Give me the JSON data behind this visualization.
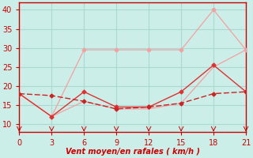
{
  "xlabel": "Vent moyen/en rafales ( km/h )",
  "xlim": [
    0,
    21
  ],
  "ylim": [
    8,
    42
  ],
  "yticks": [
    10,
    15,
    20,
    25,
    30,
    35,
    40
  ],
  "xticks": [
    0,
    3,
    6,
    9,
    12,
    15,
    18,
    21
  ],
  "bg_color": "#cceee8",
  "grid_color": "#aad8d2",
  "line_light1_x": [
    0,
    3,
    6,
    9,
    12,
    15,
    18,
    21
  ],
  "line_light1_y": [
    18,
    12,
    29.5,
    29.5,
    29.5,
    29.5,
    40,
    29.5
  ],
  "line_light2_x": [
    0,
    3,
    6,
    9,
    12,
    15,
    18,
    21
  ],
  "line_light2_y": [
    18,
    12,
    16,
    14,
    14,
    15.5,
    25,
    29.5
  ],
  "line_dark1_x": [
    0,
    3,
    6,
    9,
    12,
    15,
    18,
    21
  ],
  "line_dark1_y": [
    18,
    12,
    18.5,
    14.5,
    14.5,
    18.5,
    25.5,
    18.5
  ],
  "line_dark2_x": [
    0,
    3,
    6,
    9,
    12,
    15,
    18,
    21
  ],
  "line_dark2_y": [
    18,
    17.5,
    16,
    14,
    14.5,
    15.5,
    18,
    18.5
  ],
  "color_light": "#f4a0a0",
  "color_dark": "#cc2222",
  "color_mid": "#e03030",
  "marker": "D",
  "markersize": 2.5,
  "xlabel_color": "#cc0000",
  "tick_color": "#cc0000",
  "axis_color": "#cc0000",
  "tick_fontsize": 7,
  "xlabel_fontsize": 7
}
